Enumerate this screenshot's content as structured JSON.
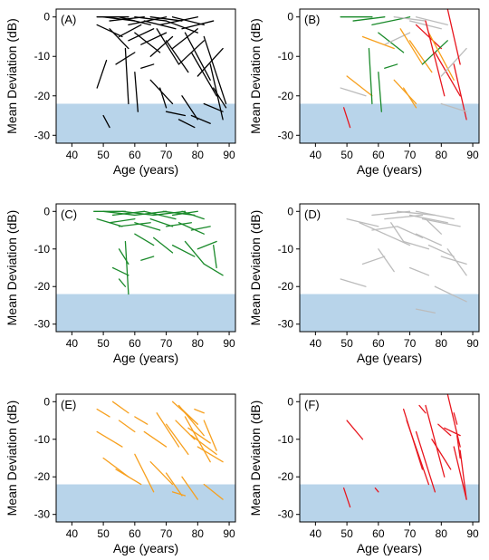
{
  "figure": {
    "xlabel": "Age (years)",
    "ylabel": "Mean Deviation (dB)",
    "x_ticks": [
      40,
      50,
      60,
      70,
      80,
      90
    ],
    "y_ticks": [
      0,
      -10,
      -20,
      -30
    ]
  },
  "colors": {
    "all": "#000000",
    "green": "#1a8a2a",
    "gray": "#bcbcbc",
    "orange": "#f7a01e",
    "red": "#e8161e",
    "shade": "#b8d4ea"
  },
  "chart_data": [
    {
      "panel": "(A)",
      "type": "line",
      "group": "all",
      "xlim": [
        35,
        92
      ],
      "ylim": [
        -32,
        2
      ],
      "shade_below": -22,
      "grid": false,
      "segments": [
        [
          48,
          0,
          58,
          0
        ],
        [
          50,
          0,
          60,
          -1
        ],
        [
          52,
          -1,
          63,
          0
        ],
        [
          55,
          0,
          65,
          -2
        ],
        [
          58,
          -2,
          70,
          0
        ],
        [
          60,
          0,
          70,
          -1
        ],
        [
          63,
          -1,
          73,
          -3
        ],
        [
          65,
          0,
          75,
          -1
        ],
        [
          68,
          -2,
          80,
          0
        ],
        [
          70,
          -1,
          80,
          -4
        ],
        [
          72,
          0,
          82,
          -2
        ],
        [
          75,
          -3,
          85,
          -1
        ],
        [
          48,
          -2,
          56,
          -5
        ],
        [
          52,
          -3,
          58,
          -8
        ],
        [
          55,
          -5,
          62,
          -2
        ],
        [
          58,
          -6,
          66,
          -3
        ],
        [
          60,
          -4,
          68,
          -9
        ],
        [
          62,
          -7,
          70,
          -4
        ],
        [
          65,
          -10,
          72,
          -5
        ],
        [
          67,
          -3,
          74,
          -12
        ],
        [
          70,
          -6,
          77,
          -14
        ],
        [
          72,
          -8,
          80,
          -3
        ],
        [
          74,
          -12,
          82,
          -6
        ],
        [
          76,
          -4,
          84,
          -16
        ],
        [
          78,
          -9,
          86,
          -20
        ],
        [
          80,
          -15,
          88,
          -8
        ],
        [
          82,
          -5,
          89,
          -22
        ],
        [
          84,
          -12,
          88,
          -26
        ],
        [
          48,
          -18,
          51,
          -11
        ],
        [
          50,
          -25,
          52,
          -28
        ],
        [
          54,
          -12,
          60,
          -9
        ],
        [
          57,
          -8,
          58,
          -22
        ],
        [
          60,
          -14,
          61,
          -24
        ],
        [
          62,
          -13,
          66,
          -12
        ],
        [
          65,
          -16,
          72,
          -22
        ],
        [
          68,
          -18,
          70,
          -23
        ],
        [
          70,
          -24,
          76,
          -25
        ],
        [
          75,
          -20,
          80,
          -26
        ],
        [
          78,
          -25,
          84,
          -27
        ],
        [
          82,
          -22,
          88,
          -24
        ],
        [
          74,
          -26,
          79,
          -28
        ],
        [
          85,
          -18,
          89,
          -23
        ]
      ]
    },
    {
      "panel": "(B)",
      "type": "line",
      "group": "combined",
      "xlim": [
        35,
        92
      ],
      "ylim": [
        -32,
        2
      ],
      "shade_below": -22,
      "grid": false,
      "segments": [
        [
          48,
          0,
          58,
          0,
          "green"
        ],
        [
          52,
          -1,
          62,
          0,
          "green"
        ],
        [
          58,
          -2,
          70,
          0,
          "green"
        ],
        [
          65,
          0,
          75,
          -1,
          "gray"
        ],
        [
          70,
          -1,
          80,
          -3,
          "gray"
        ],
        [
          72,
          0,
          82,
          -2,
          "gray"
        ],
        [
          60,
          -4,
          68,
          -9,
          "green"
        ],
        [
          62,
          -7,
          70,
          -4,
          "gray"
        ],
        [
          67,
          -3,
          74,
          -12,
          "orange"
        ],
        [
          70,
          -6,
          77,
          -14,
          "orange"
        ],
        [
          72,
          -2,
          80,
          -8,
          "red"
        ],
        [
          74,
          -12,
          82,
          -6,
          "green"
        ],
        [
          76,
          -4,
          84,
          -16,
          "orange"
        ],
        [
          78,
          -9,
          86,
          -20,
          "red"
        ],
        [
          80,
          -15,
          88,
          -8,
          "gray"
        ],
        [
          82,
          2,
          86,
          -12,
          "red"
        ],
        [
          84,
          -12,
          88,
          -26,
          "red"
        ],
        [
          75,
          -1,
          81,
          -20,
          "red"
        ],
        [
          55,
          -5,
          65,
          -8,
          "orange"
        ],
        [
          50,
          -15,
          58,
          -20,
          "orange"
        ],
        [
          57,
          -8,
          58,
          -22,
          "green"
        ],
        [
          60,
          -14,
          61,
          -24,
          "green"
        ],
        [
          62,
          -13,
          66,
          -12,
          "green"
        ],
        [
          65,
          -16,
          72,
          -22,
          "orange"
        ],
        [
          49,
          -23,
          51,
          -28,
          "red"
        ],
        [
          48,
          -18,
          56,
          -20,
          "gray"
        ],
        [
          68,
          -18,
          72,
          -23,
          "orange"
        ],
        [
          80,
          -22,
          88,
          -24,
          "gray"
        ]
      ]
    },
    {
      "panel": "(C)",
      "type": "line",
      "group": "green",
      "xlim": [
        35,
        92
      ],
      "ylim": [
        -32,
        2
      ],
      "shade_below": -22,
      "grid": false,
      "segments": [
        [
          47,
          0,
          57,
          0
        ],
        [
          50,
          0,
          60,
          -1
        ],
        [
          53,
          -1,
          63,
          0
        ],
        [
          56,
          0,
          66,
          -1
        ],
        [
          60,
          -1,
          70,
          0
        ],
        [
          63,
          0,
          73,
          -2
        ],
        [
          66,
          -1,
          76,
          0
        ],
        [
          69,
          0,
          79,
          -1
        ],
        [
          72,
          -1,
          80,
          0
        ],
        [
          75,
          0,
          82,
          -2
        ],
        [
          48,
          -2,
          56,
          -4
        ],
        [
          52,
          -3,
          60,
          -2
        ],
        [
          55,
          -4,
          65,
          -3
        ],
        [
          60,
          -3,
          68,
          -5
        ],
        [
          65,
          -2,
          72,
          -4
        ],
        [
          70,
          -4,
          78,
          -3
        ],
        [
          74,
          -3,
          82,
          -6
        ],
        [
          78,
          -5,
          84,
          -4
        ],
        [
          60,
          -6,
          66,
          -9
        ],
        [
          66,
          -7,
          72,
          -11
        ],
        [
          72,
          -9,
          79,
          -12
        ],
        [
          76,
          -8,
          82,
          -14
        ],
        [
          80,
          -10,
          86,
          -8
        ],
        [
          82,
          -14,
          88,
          -17
        ],
        [
          55,
          -10,
          58,
          -14
        ],
        [
          57,
          -8,
          58,
          -22
        ],
        [
          53,
          -15,
          58,
          -17
        ],
        [
          62,
          -13,
          66,
          -12
        ],
        [
          55,
          -18,
          57,
          -20
        ],
        [
          85,
          -9,
          86,
          -15
        ]
      ]
    },
    {
      "panel": "(D)",
      "type": "line",
      "group": "gray",
      "xlim": [
        35,
        92
      ],
      "ylim": [
        -32,
        2
      ],
      "shade_below": -22,
      "grid": false,
      "segments": [
        [
          58,
          -1,
          70,
          0
        ],
        [
          62,
          -2,
          74,
          -1
        ],
        [
          66,
          0,
          78,
          -1
        ],
        [
          70,
          -1,
          82,
          -3
        ],
        [
          72,
          0,
          84,
          -2
        ],
        [
          74,
          -2,
          86,
          -4
        ],
        [
          50,
          -2,
          60,
          -4
        ],
        [
          54,
          -3,
          62,
          -6
        ],
        [
          58,
          -5,
          66,
          -4
        ],
        [
          62,
          -6,
          70,
          -9
        ],
        [
          66,
          -4,
          74,
          -7
        ],
        [
          68,
          -8,
          76,
          -10
        ],
        [
          72,
          -6,
          80,
          -9
        ],
        [
          76,
          -9,
          84,
          -12
        ],
        [
          80,
          -12,
          88,
          -14
        ],
        [
          82,
          -10,
          88,
          -17
        ],
        [
          48,
          -18,
          56,
          -20
        ],
        [
          55,
          -14,
          62,
          -12
        ],
        [
          60,
          -10,
          65,
          -16
        ],
        [
          70,
          -15,
          76,
          -17
        ],
        [
          78,
          -20,
          88,
          -24
        ],
        [
          72,
          -26,
          78,
          -27
        ],
        [
          75,
          -2,
          80,
          -6
        ],
        [
          64,
          -3,
          68,
          -8
        ]
      ]
    },
    {
      "panel": "(E)",
      "type": "line",
      "group": "orange",
      "xlim": [
        35,
        92
      ],
      "ylim": [
        -32,
        2
      ],
      "shade_below": -22,
      "grid": false,
      "segments": [
        [
          48,
          -2,
          52,
          -4
        ],
        [
          53,
          0,
          58,
          -3
        ],
        [
          55,
          -5,
          60,
          -8
        ],
        [
          48,
          -8,
          56,
          -12
        ],
        [
          50,
          -15,
          58,
          -20
        ],
        [
          54,
          -18,
          62,
          -22
        ],
        [
          60,
          -14,
          66,
          -24
        ],
        [
          65,
          -16,
          72,
          -22
        ],
        [
          70,
          -19,
          75,
          -25
        ],
        [
          72,
          -24,
          76,
          -25
        ],
        [
          75,
          -20,
          80,
          -26
        ],
        [
          82,
          -22,
          88,
          -26
        ],
        [
          63,
          -8,
          70,
          -12
        ],
        [
          67,
          -3,
          74,
          -12
        ],
        [
          70,
          -6,
          77,
          -14
        ],
        [
          72,
          0,
          80,
          -6
        ],
        [
          74,
          -1,
          82,
          -9
        ],
        [
          76,
          -4,
          84,
          -16
        ],
        [
          78,
          -9,
          86,
          -14
        ],
        [
          80,
          -12,
          88,
          -16
        ],
        [
          73,
          -5,
          79,
          -10
        ],
        [
          75,
          -2,
          80,
          -6
        ],
        [
          77,
          -7,
          84,
          -11
        ],
        [
          82,
          -5,
          86,
          -13
        ],
        [
          60,
          -4,
          64,
          -6
        ],
        [
          79,
          -2,
          82,
          -3
        ]
      ]
    },
    {
      "panel": "(F)",
      "type": "line",
      "group": "red",
      "xlim": [
        35,
        92
      ],
      "ylim": [
        -32,
        2
      ],
      "shade_below": -22,
      "grid": false,
      "segments": [
        [
          50,
          -5,
          55,
          -10
        ],
        [
          49,
          -23,
          51,
          -28
        ],
        [
          59,
          -23,
          60,
          -24
        ],
        [
          68,
          -2,
          74,
          -18
        ],
        [
          69,
          -5,
          76,
          -22
        ],
        [
          72,
          -8,
          78,
          -24
        ],
        [
          73,
          -1,
          75,
          -3
        ],
        [
          75,
          -1,
          81,
          -20
        ],
        [
          77,
          -10,
          83,
          -18
        ],
        [
          79,
          -6,
          83,
          -9
        ],
        [
          81,
          -7,
          86,
          -9
        ],
        [
          82,
          2,
          86,
          -12
        ],
        [
          84,
          -3,
          85,
          -6
        ],
        [
          84,
          -12,
          88,
          -26
        ],
        [
          85,
          -9,
          86,
          -15
        ],
        [
          86,
          -13,
          88,
          -26
        ]
      ]
    }
  ]
}
